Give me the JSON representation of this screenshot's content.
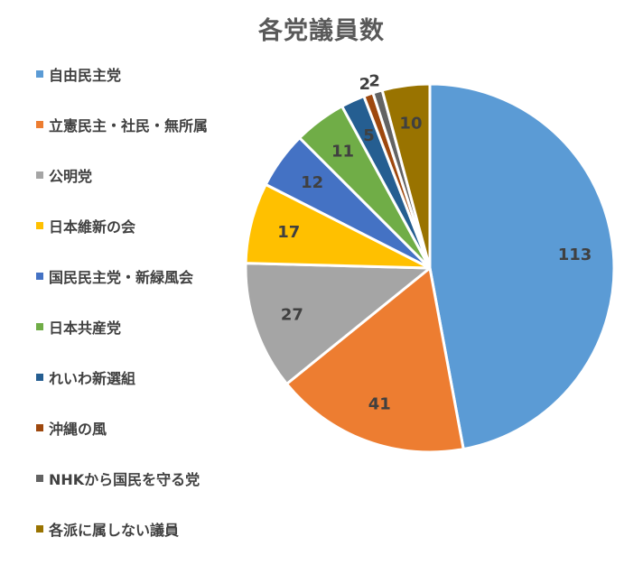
{
  "chart_data": {
    "type": "pie",
    "title": "各党議員数",
    "categories": [
      "自由民主党",
      "立憲民主・社民・無所属",
      "公明党",
      "日本維新の会",
      "国民民主党・新緑風会",
      "日本共産党",
      "れいわ新選組",
      "沖縄の風",
      "NHKから国民を守る党",
      "各派に属しない議員"
    ],
    "values": [
      113,
      41,
      27,
      17,
      12,
      11,
      5,
      2,
      2,
      10
    ],
    "colors": [
      "#5B9BD5",
      "#ED7D31",
      "#A5A5A5",
      "#FFC000",
      "#4472C4",
      "#70AD47",
      "#255E91",
      "#9E480E",
      "#636363",
      "#997300"
    ],
    "legend_position": "left"
  }
}
